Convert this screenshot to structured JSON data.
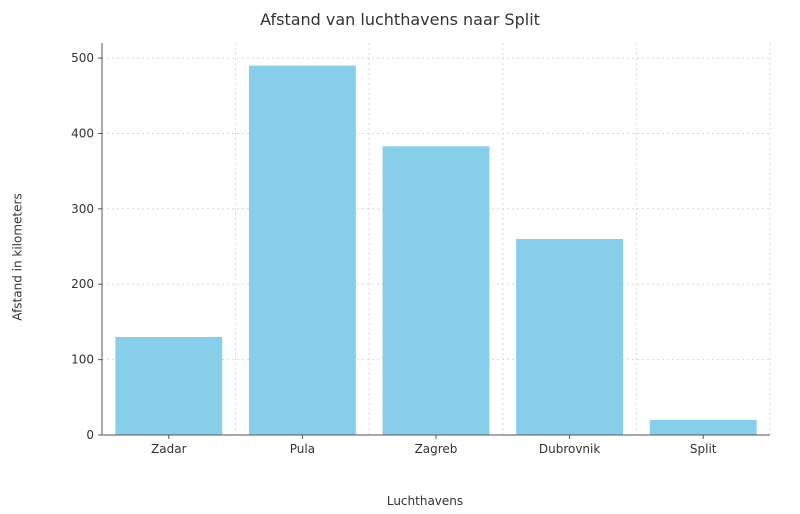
{
  "chart": {
    "type": "bar",
    "title": "Afstand van luchthavens naar Split",
    "title_fontsize": 16,
    "xlabel": "Luchthavens",
    "ylabel": "Afstand in kilometers",
    "label_fontsize": 12,
    "tick_fontsize": 12,
    "categories": [
      "Zadar",
      "Pula",
      "Zagreb",
      "Dubrovnik",
      "Split"
    ],
    "values": [
      130,
      490,
      383,
      260,
      20
    ],
    "bar_color": "#87ceeb",
    "bar_width": 0.8,
    "ylim": [
      0,
      520
    ],
    "yticks": [
      0,
      100,
      200,
      300,
      400,
      500
    ],
    "background_color": "#ffffff",
    "grid_color": "#d7d7d7",
    "grid_dash": "2,3",
    "axis_line_color": "#555555",
    "text_color": "#333333",
    "spines": {
      "top": false,
      "right": false,
      "left": true,
      "bottom": true
    }
  }
}
